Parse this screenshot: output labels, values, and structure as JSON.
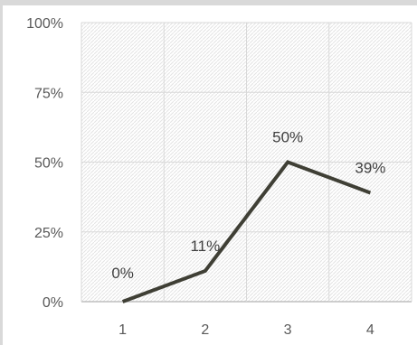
{
  "chart_data": {
    "type": "line",
    "categories": [
      "1",
      "2",
      "3",
      "4"
    ],
    "series": [
      {
        "values": [
          0,
          11,
          50,
          39
        ]
      }
    ],
    "data_labels": [
      "0%",
      "11%",
      "50%",
      "39%"
    ],
    "y_ticks": [
      {
        "value": 0,
        "label": "0%"
      },
      {
        "value": 25,
        "label": "25%"
      },
      {
        "value": 50,
        "label": "50%"
      },
      {
        "value": 75,
        "label": "75%"
      },
      {
        "value": 100,
        "label": "100%"
      }
    ],
    "ylim": [
      0,
      100
    ],
    "grid": true,
    "line_color": "#3f3f35",
    "grid_color": "#d9d9d9",
    "axis_color": "#bfbfbf",
    "plot_pattern_color": "#e3e3e3"
  }
}
